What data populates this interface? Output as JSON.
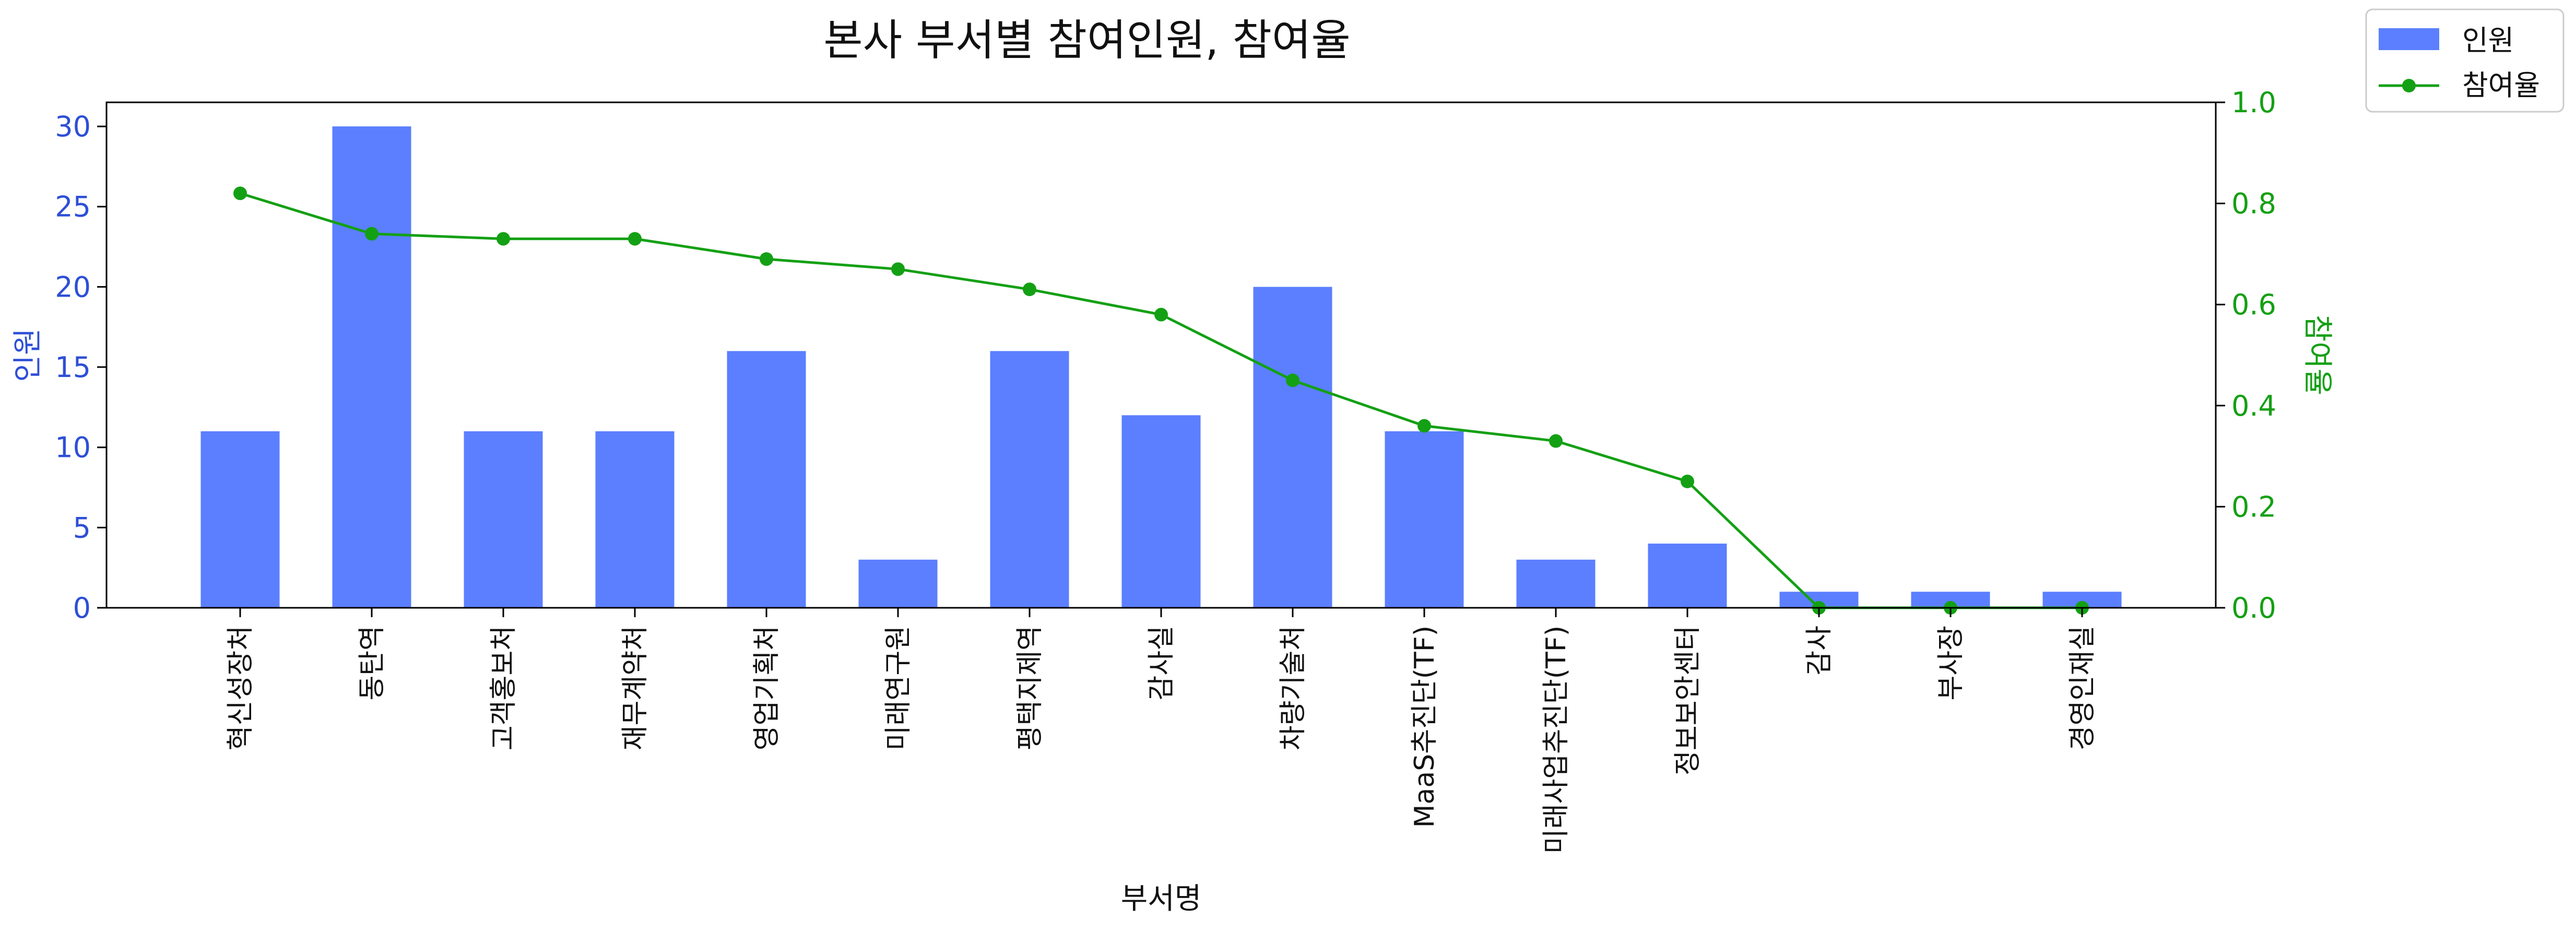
{
  "chart_data": {
    "type": "bar",
    "title": "본사 부서별 참여인원, 참여율",
    "xlabel": "부서명",
    "categories": [
      "혁신성장처",
      "동탄역",
      "고객홍보처",
      "재무계약처",
      "영업기획처",
      "미래연구원",
      "평택지제역",
      "감사실",
      "차량기술처",
      "MaaS추진단(TF)",
      "미래사업추진단(TF)",
      "정보보안센터",
      "감사",
      "부사장",
      "경영인재실"
    ],
    "series": [
      {
        "name": "인원",
        "type": "bar",
        "axis": "left",
        "color": "#5b7fff",
        "values": [
          11,
          30,
          11,
          11,
          16,
          3,
          16,
          12,
          20,
          11,
          3,
          4,
          1,
          1,
          1
        ]
      },
      {
        "name": "참여율",
        "type": "line",
        "axis": "right",
        "color": "#14a014",
        "values": [
          0.82,
          0.74,
          0.73,
          0.73,
          0.69,
          0.67,
          0.63,
          0.58,
          0.45,
          0.36,
          0.33,
          0.25,
          0.0,
          0.0,
          0.0
        ]
      }
    ],
    "y_left": {
      "label": "인원",
      "range": [
        0,
        31.5
      ],
      "ticks": [
        0,
        5,
        10,
        15,
        20,
        25,
        30
      ],
      "color": "#2e4fd6"
    },
    "y_right": {
      "label": "참여율",
      "range": [
        0,
        1.0
      ],
      "ticks": [
        "0.0",
        "0.2",
        "0.4",
        "0.6",
        "0.8",
        "1.0"
      ],
      "color": "#14a014"
    },
    "grid": false,
    "legend_position": "top-right"
  }
}
